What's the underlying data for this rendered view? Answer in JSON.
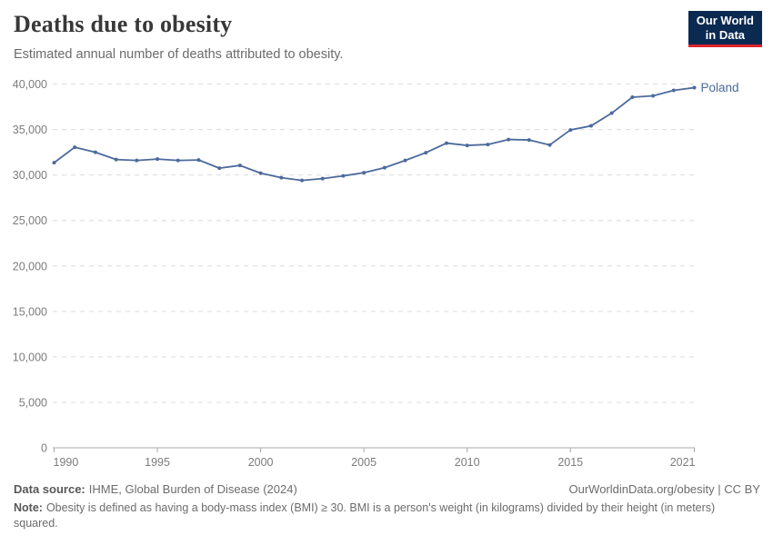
{
  "header": {
    "title": "Deaths due to obesity",
    "subtitle": "Estimated annual number of deaths attributed to obesity.",
    "logo": {
      "line1": "Our World",
      "line2": "in Data"
    }
  },
  "chart_data": {
    "type": "line",
    "title": "Deaths due to obesity",
    "x": [
      1990,
      1991,
      1992,
      1993,
      1994,
      1995,
      1996,
      1997,
      1998,
      1999,
      2000,
      2001,
      2002,
      2003,
      2004,
      2005,
      2006,
      2007,
      2008,
      2009,
      2010,
      2011,
      2012,
      2013,
      2014,
      2015,
      2016,
      2017,
      2018,
      2019,
      2020,
      2021
    ],
    "series": [
      {
        "name": "Poland",
        "color": "#4c6a9c",
        "values": [
          31350,
          33050,
          32500,
          31700,
          31600,
          31750,
          31600,
          31650,
          30750,
          31050,
          30200,
          29700,
          29400,
          29600,
          29900,
          30250,
          30800,
          31600,
          32450,
          33500,
          33250,
          33350,
          33900,
          33850,
          33300,
          34950,
          35400,
          36800,
          38550,
          38700,
          39300,
          39600
        ]
      }
    ],
    "xlim": [
      1990,
      2021
    ],
    "ylim": [
      0,
      40000
    ],
    "xticks": [
      1990,
      1995,
      2000,
      2005,
      2010,
      2015,
      2021
    ],
    "yticks": [
      0,
      5000,
      10000,
      15000,
      20000,
      25000,
      30000,
      35000,
      40000
    ],
    "grid": "horizontal-dashed",
    "legend_position": "end-of-line-label"
  },
  "theme": {
    "line_color": "#4c6a9c",
    "grid_color": "#dcdcdc",
    "axis_color": "#a8a8a8",
    "tick_label_color": "#7c7c7c",
    "logo_bg": "#0b2a51",
    "logo_accent": "#e0242c"
  },
  "footer": {
    "source_label": "Data source:",
    "source_text": "IHME, Global Burden of Disease (2024)",
    "link_text": "OurWorldinData.org/obesity | CC BY",
    "note_label": "Note:",
    "note_text": "Obesity is defined as having a body-mass index (BMI) ≥ 30. BMI is a person's weight (in kilograms) divided by their height (in meters) squared."
  }
}
